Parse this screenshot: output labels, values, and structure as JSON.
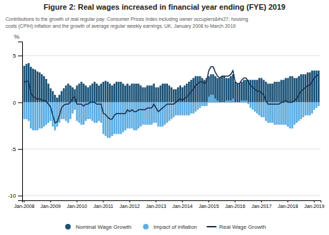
{
  "chart_data": {
    "type": "bar",
    "title": "Figure 2: Real wages increased in financial year ending (FYE) 2019",
    "subtitle": "Contributions to the growth of real regular pay: Consumer Prices Index including owner occupiers&#x27; housing\ncosts (CPIH) inflation and the growth of average regular weekly earnings, UK, January 2008 to March 2019",
    "ylabel": "%",
    "ylim": [
      -10.5,
      6.5
    ],
    "yticks": [
      -10,
      -5,
      0,
      5
    ],
    "grid": true,
    "legend": "bottom",
    "categories": [
      "Jan-2008",
      null,
      null,
      null,
      null,
      null,
      null,
      null,
      null,
      null,
      null,
      null,
      "Jan-2009",
      null,
      null,
      null,
      null,
      null,
      null,
      null,
      null,
      null,
      null,
      null,
      "Jan-2010",
      null,
      null,
      null,
      null,
      null,
      null,
      null,
      null,
      null,
      null,
      null,
      "Jan-2011",
      null,
      null,
      null,
      null,
      null,
      null,
      null,
      null,
      null,
      null,
      null,
      "Jan-2012",
      null,
      null,
      null,
      null,
      null,
      null,
      null,
      null,
      null,
      null,
      null,
      "Jan-2013",
      null,
      null,
      null,
      null,
      null,
      null,
      null,
      null,
      null,
      null,
      null,
      "Jan-2014",
      null,
      null,
      null,
      null,
      null,
      null,
      null,
      null,
      null,
      null,
      null,
      "Jan-2015",
      null,
      null,
      null,
      null,
      null,
      null,
      null,
      null,
      null,
      null,
      null,
      "Jan-2016",
      null,
      null,
      null,
      null,
      null,
      null,
      null,
      null,
      null,
      null,
      null,
      "Jan-2017",
      null,
      null,
      null,
      null,
      null,
      null,
      null,
      null,
      null,
      null,
      null,
      "Jan-2018",
      null,
      null,
      null,
      null,
      null,
      null,
      null,
      null,
      null,
      null,
      null,
      "Jan-2019",
      null,
      null
    ],
    "series": [
      {
        "name": "Nominal Wage Growth",
        "type": "bar",
        "color": "#1a5276",
        "values": [
          3.9,
          4.1,
          4.2,
          3.8,
          3.6,
          3.5,
          3.3,
          3.2,
          3.0,
          2.8,
          2.5,
          2.0,
          1.5,
          1.2,
          0.8,
          0.5,
          0.8,
          1.2,
          1.5,
          1.8,
          2.0,
          1.8,
          1.6,
          1.4,
          1.8,
          2.0,
          2.2,
          2.0,
          1.8,
          1.6,
          1.8,
          2.0,
          2.2,
          2.0,
          1.8,
          2.0,
          2.2,
          2.3,
          2.2,
          2.0,
          1.8,
          2.0,
          2.2,
          2.2,
          2.2,
          2.0,
          1.8,
          2.0,
          1.8,
          2.0,
          2.0,
          2.0,
          2.0,
          1.8,
          1.6,
          1.6,
          1.8,
          1.8,
          1.8,
          2.0,
          1.6,
          1.6,
          1.8,
          2.0,
          2.0,
          2.0,
          1.8,
          1.6,
          1.4,
          1.4,
          1.6,
          1.8,
          1.6,
          1.8,
          2.0,
          2.2,
          2.4,
          2.6,
          2.8,
          2.8,
          2.8,
          2.6,
          2.4,
          2.6,
          2.8,
          3.0,
          3.0,
          2.8,
          2.6,
          2.6,
          2.8,
          2.8,
          2.6,
          2.6,
          2.8,
          3.0,
          2.2,
          2.0,
          2.0,
          2.2,
          2.4,
          2.4,
          2.4,
          2.4,
          2.4,
          2.4,
          2.4,
          2.6,
          2.6,
          2.4,
          2.2,
          2.0,
          2.0,
          2.0,
          2.2,
          2.2,
          2.2,
          2.4,
          2.4,
          2.6,
          2.6,
          2.8,
          2.8,
          2.6,
          2.6,
          2.8,
          3.0,
          3.0,
          3.0,
          3.2,
          3.2,
          3.4,
          3.4,
          3.4,
          3.4
        ]
      },
      {
        "name": "Impact of inflation",
        "type": "bar",
        "color": "#5dade2",
        "values": [
          -1.8,
          -1.8,
          -2.0,
          -2.8,
          -3.0,
          -3.0,
          -3.0,
          -2.8,
          -2.8,
          -2.6,
          -2.4,
          -2.2,
          -2.0,
          -2.6,
          -3.0,
          -2.6,
          -2.2,
          -1.8,
          -1.8,
          -2.0,
          -2.2,
          -1.8,
          -1.2,
          -0.8,
          -2.0,
          -2.2,
          -2.4,
          -2.4,
          -2.0,
          -1.8,
          -1.8,
          -2.0,
          -2.2,
          -2.2,
          -2.0,
          -2.2,
          -3.4,
          -3.6,
          -3.8,
          -3.8,
          -3.6,
          -3.4,
          -3.4,
          -3.4,
          -3.4,
          -3.2,
          -3.0,
          -2.8,
          -2.8,
          -2.8,
          -3.0,
          -3.0,
          -2.8,
          -2.6,
          -2.4,
          -2.4,
          -2.4,
          -2.4,
          -2.4,
          -2.2,
          -2.2,
          -2.6,
          -2.6,
          -2.6,
          -2.4,
          -2.2,
          -2.0,
          -1.8,
          -1.6,
          -1.4,
          -1.4,
          -1.4,
          -1.4,
          -1.4,
          -1.4,
          -1.4,
          -1.2,
          -1.2,
          -1.0,
          -0.8,
          -0.6,
          -0.4,
          -0.4,
          -0.4,
          0.6,
          0.8,
          0.8,
          0.4,
          0.2,
          0.0,
          0.0,
          0.0,
          0.2,
          0.2,
          0.2,
          0.4,
          0.0,
          0.0,
          0.0,
          0.2,
          0.2,
          0.2,
          -0.2,
          -0.6,
          -0.8,
          -1.0,
          -1.2,
          -1.4,
          -1.6,
          -1.6,
          -2.0,
          -2.2,
          -2.2,
          -2.2,
          -2.4,
          -2.4,
          -2.4,
          -2.4,
          -2.4,
          -2.4,
          -2.6,
          -2.8,
          -2.8,
          -2.4,
          -2.2,
          -2.0,
          -1.8,
          -1.6,
          -1.4,
          -1.4,
          -1.4,
          -1.2,
          -0.8,
          -0.6,
          -0.4
        ]
      },
      {
        "name": "Real Wage Growth",
        "type": "line",
        "color": "#1a2f4a",
        "values": [
          2.1,
          2.3,
          2.2,
          1.0,
          0.6,
          0.5,
          0.3,
          0.4,
          0.2,
          0.2,
          0.1,
          -0.2,
          -0.5,
          -1.4,
          -2.2,
          -2.1,
          -1.4,
          -0.6,
          -0.3,
          -0.2,
          -0.2,
          0.0,
          0.4,
          0.6,
          -0.2,
          -0.2,
          -0.2,
          -0.4,
          -0.2,
          -0.2,
          0.0,
          0.0,
          0.0,
          -0.2,
          -0.2,
          -0.2,
          -1.2,
          -1.3,
          -1.6,
          -1.8,
          -1.8,
          -1.4,
          -1.2,
          -1.2,
          -1.2,
          -1.2,
          -1.2,
          -0.8,
          -1.0,
          -0.8,
          -1.0,
          -1.0,
          -0.8,
          -0.8,
          -0.8,
          -0.8,
          -0.6,
          -0.6,
          -0.6,
          -0.2,
          -0.6,
          -1.0,
          -0.8,
          -0.6,
          -0.4,
          -0.2,
          -0.2,
          -0.2,
          -0.2,
          0.0,
          0.2,
          0.4,
          0.2,
          0.4,
          0.6,
          0.8,
          1.2,
          1.4,
          1.8,
          2.0,
          2.2,
          2.2,
          2.0,
          2.2,
          3.4,
          3.8,
          3.8,
          3.2,
          2.8,
          2.6,
          2.8,
          2.8,
          2.8,
          2.8,
          3.0,
          3.4,
          2.2,
          2.0,
          2.0,
          2.4,
          2.6,
          2.6,
          2.2,
          1.8,
          1.6,
          1.4,
          1.2,
          1.2,
          1.0,
          0.8,
          0.2,
          -0.2,
          -0.2,
          -0.2,
          -0.2,
          -0.2,
          -0.2,
          0.0,
          0.0,
          0.2,
          0.0,
          0.0,
          0.0,
          0.2,
          0.4,
          0.8,
          1.2,
          1.4,
          1.6,
          1.8,
          1.8,
          2.2,
          2.6,
          2.8,
          3.0
        ]
      }
    ]
  }
}
